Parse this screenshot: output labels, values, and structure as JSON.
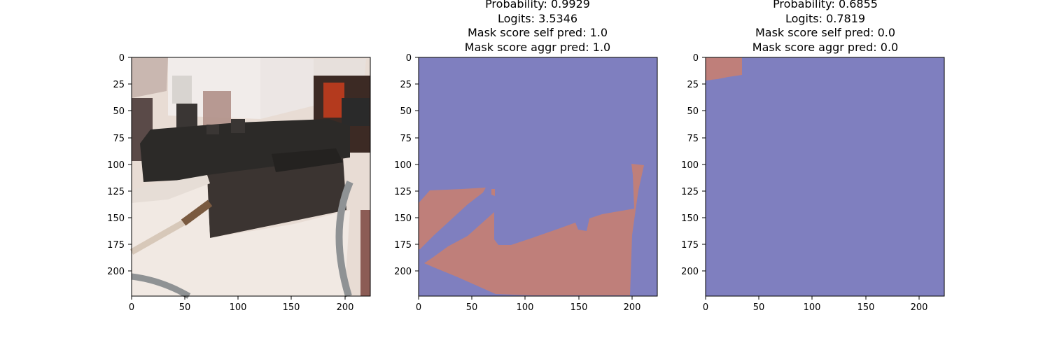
{
  "panels": [
    {
      "title_lines": [],
      "content": "photo",
      "photo_description": "model locomotive with tender on a white work surface, paint brush and paint bottles",
      "xticks": [
        "0",
        "50",
        "100",
        "150",
        "200"
      ],
      "yticks": [
        "0",
        "25",
        "50",
        "75",
        "100",
        "125",
        "150",
        "175",
        "200"
      ]
    },
    {
      "title_lines": [
        "Probability: 0.9929",
        "Logits: 3.5346",
        "Mask score self pred: 1.0",
        "Mask score aggr pred: 1.0"
      ],
      "content": "mask",
      "xticks": [
        "0",
        "50",
        "100",
        "150",
        "200"
      ],
      "yticks": [
        "0",
        "25",
        "50",
        "75",
        "100",
        "125",
        "150",
        "175",
        "200"
      ]
    },
    {
      "title_lines": [
        "Probability: 0.6855",
        "Logits: 0.7819",
        "Mask score self pred: 0.0",
        "Mask score aggr pred: 0.0"
      ],
      "content": "mask",
      "xticks": [
        "0",
        "50",
        "100",
        "150",
        "200"
      ],
      "yticks": [
        "0",
        "25",
        "50",
        "75",
        "100",
        "125",
        "150",
        "175",
        "200"
      ]
    }
  ],
  "colors": {
    "mask_background": "#7f7fbf",
    "mask_foreground": "#bf7f7a",
    "axis": "#000000"
  }
}
